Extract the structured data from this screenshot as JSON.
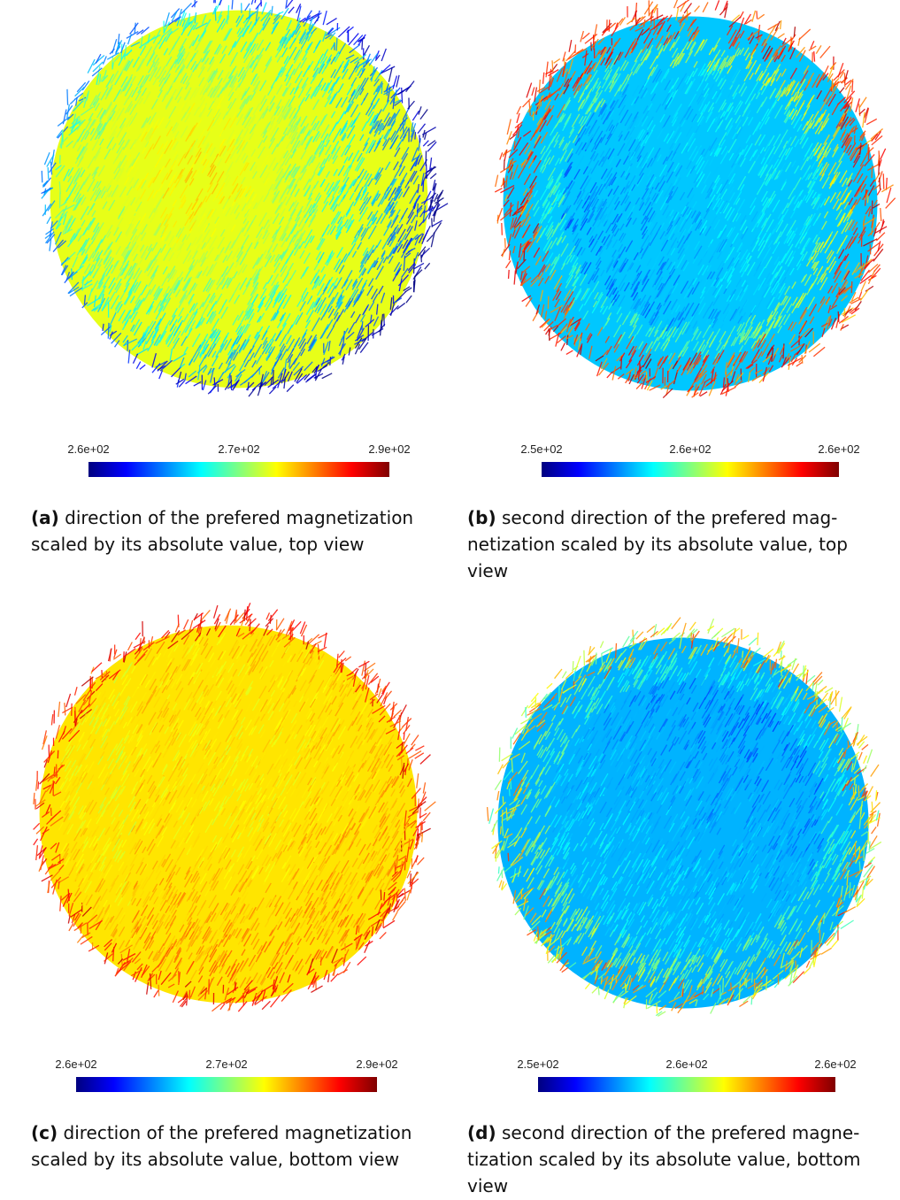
{
  "panels": [
    {
      "colorbar": {
        "ticks": [
          "2.6e+02",
          "2.7e+02",
          "2.9e+02"
        ]
      },
      "caption": {
        "label": "(a)",
        "lines": [
          "direction of the prefered magnetization",
          "scaled by its absolute value, top view"
        ]
      }
    },
    {
      "colorbar": {
        "ticks": [
          "2.5e+02",
          "2.6e+02",
          "2.6e+02"
        ]
      },
      "caption": {
        "label": "(b)",
        "lines": [
          "second direction of the prefered mag-",
          "netization scaled by its absolute value, top",
          "view"
        ]
      }
    },
    {
      "colorbar": {
        "ticks": [
          "2.6e+02",
          "2.7e+02",
          "2.9e+02"
        ]
      },
      "caption": {
        "label": "(c)",
        "lines": [
          "direction of the prefered magnetization",
          "scaled by its absolute value, bottom view"
        ]
      }
    },
    {
      "colorbar": {
        "ticks": [
          "2.5e+02",
          "2.6e+02",
          "2.6e+02"
        ]
      },
      "caption": {
        "label": "(d)",
        "lines": [
          "second direction of the prefered magne-",
          "tization scaled by its absolute value, bottom",
          "view"
        ]
      }
    }
  ]
}
